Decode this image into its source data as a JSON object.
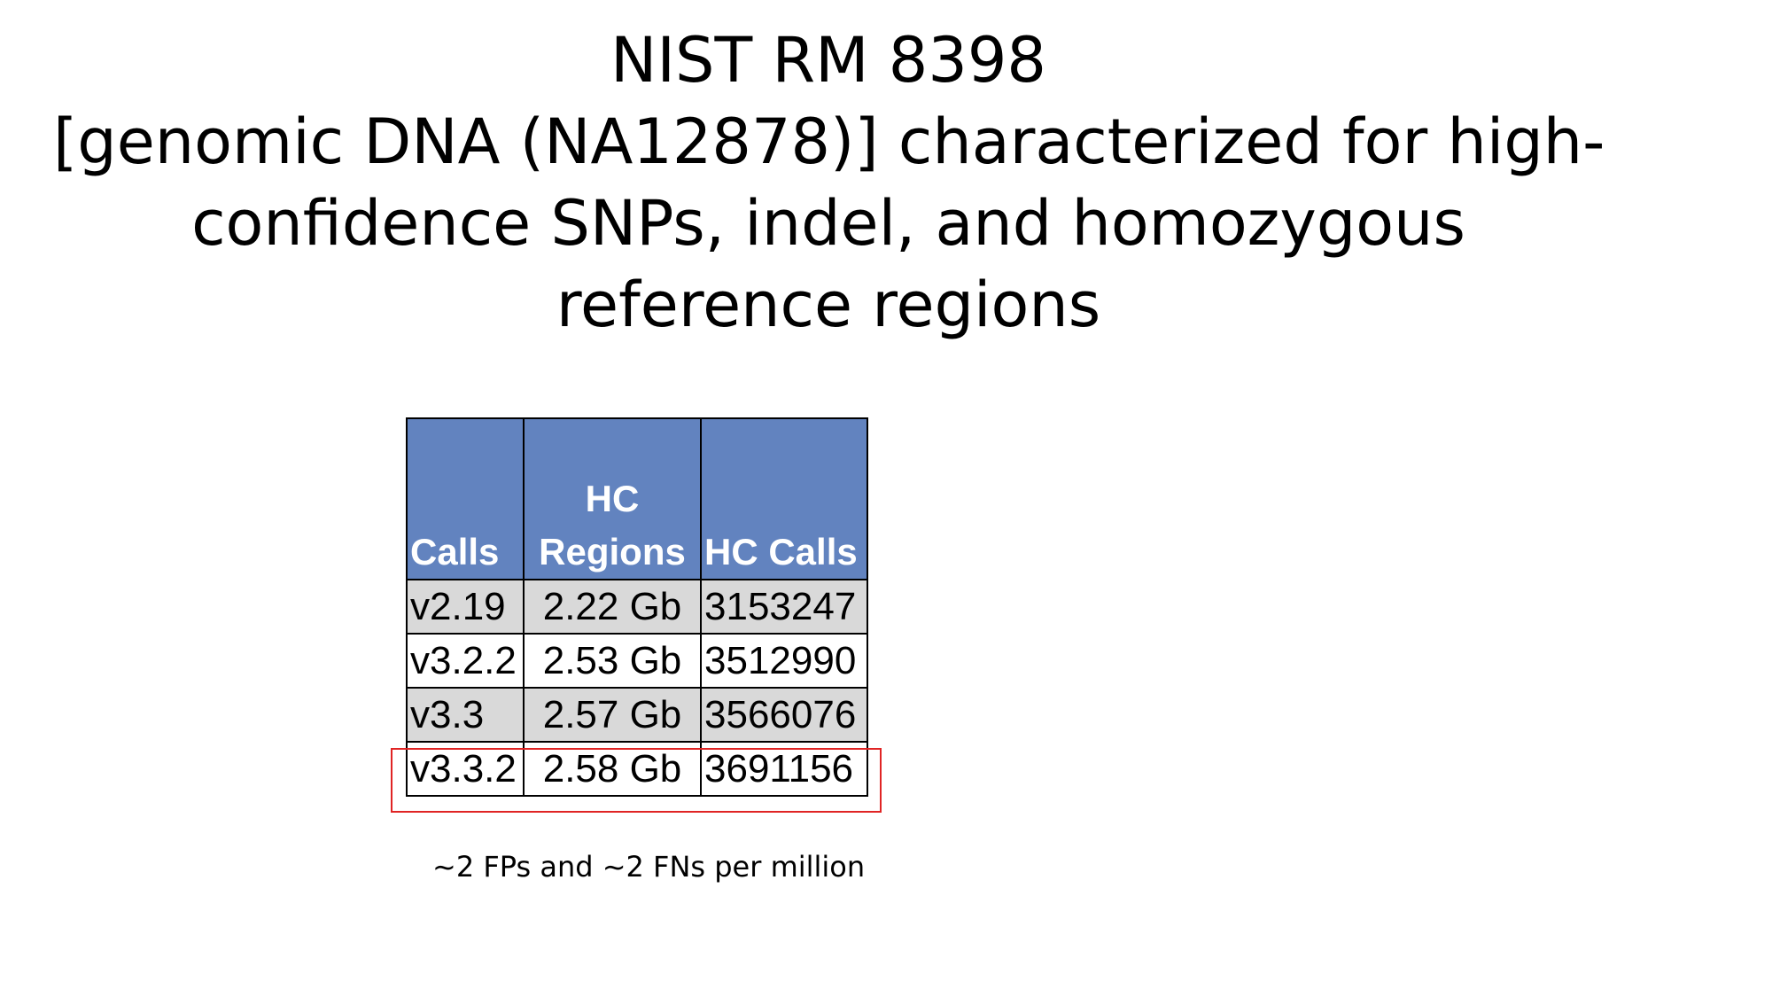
{
  "title": {
    "lines": [
      "NIST RM 8398",
      "[genomic DNA (NA12878)] characterized for high-",
      "confidence SNPs, indel, and homozygous",
      "reference regions"
    ]
  },
  "table": {
    "headers": {
      "calls": "Calls",
      "hc_regions_line1": "HC",
      "hc_regions_line2": "Regions",
      "hc_calls": "HC Calls"
    },
    "rows": [
      {
        "calls": "v2.19",
        "hc_regions": "2.22 Gb",
        "hc_calls": "3153247"
      },
      {
        "calls": "v3.2.2",
        "hc_regions": "2.53 Gb",
        "hc_calls": "3512990"
      },
      {
        "calls": "v3.3",
        "hc_regions": "2.57 Gb",
        "hc_calls": "3566076"
      },
      {
        "calls": "v3.3.2",
        "hc_regions": "2.58 Gb",
        "hc_calls": "3691156"
      }
    ],
    "highlighted_row": "v3.3.2"
  },
  "footnote": "~2 FPs and ~2 FNs per million",
  "colors": {
    "header_bg": "#6283bf",
    "row_shade": "#d9d9d9",
    "highlight_border": "#e02424"
  }
}
